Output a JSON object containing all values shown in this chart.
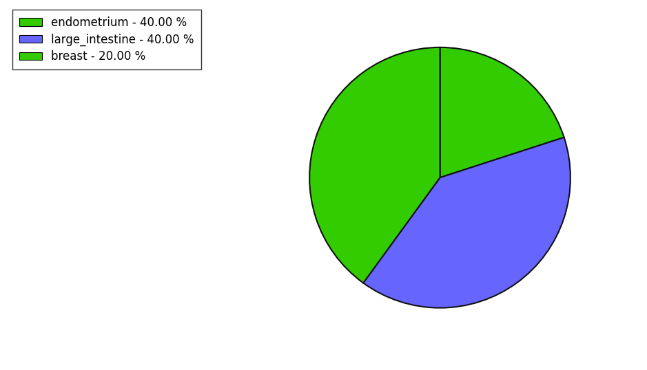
{
  "labels": [
    "endometrium",
    "large_intestine",
    "breast"
  ],
  "values": [
    40.0,
    40.0,
    20.0
  ],
  "colors": [
    "#33cc00",
    "#6666ff",
    "#33cc00"
  ],
  "legend_labels": [
    "endometrium - 40.00 %",
    "large_intestine - 40.00 %",
    "breast - 20.00 %"
  ],
  "startangle": 90,
  "figsize": [
    9.39,
    5.38
  ],
  "dpi": 100,
  "background_color": "#ffffff",
  "legend_fontsize": 12,
  "edge_color": "#111111",
  "edge_linewidth": 1.5,
  "pie_order_values": [
    20.0,
    40.0,
    40.0
  ],
  "pie_order_colors": [
    "#33cc00",
    "#6666ff",
    "#33cc00"
  ]
}
